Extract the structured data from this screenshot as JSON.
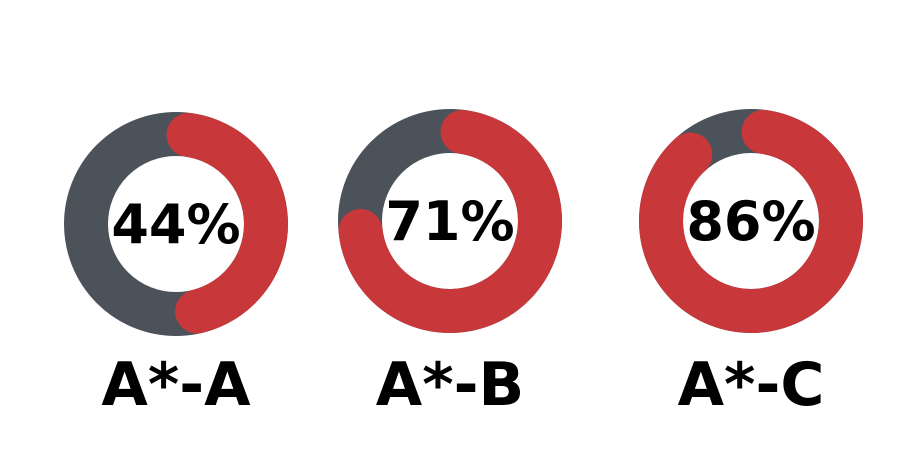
{
  "chart_data": {
    "type": "pie",
    "subtype": "donut",
    "charts": [
      {
        "category": "A*-A",
        "value": 44,
        "label": "44%"
      },
      {
        "category": "A*-B",
        "value": 71,
        "label": "71%"
      },
      {
        "category": "A*-C",
        "value": 86,
        "label": "86%"
      }
    ],
    "colors": {
      "filled": "#c8373a",
      "remaining": "#4b525a"
    },
    "unit": "%"
  }
}
